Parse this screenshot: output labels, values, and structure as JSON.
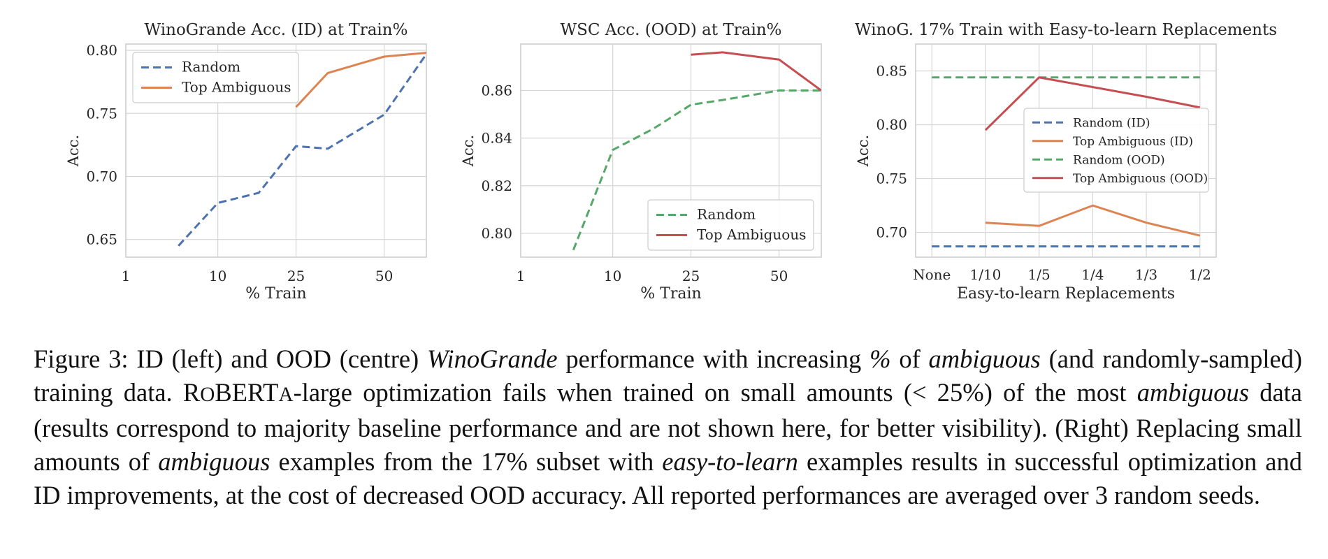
{
  "colors": {
    "blue": "#4c72b0",
    "orange": "#dd8452",
    "green": "#55a868",
    "red": "#c44e52",
    "grid": "#d6d6d6",
    "frame": "#cccccc"
  },
  "chart_data": [
    {
      "type": "line",
      "title": "WinoGrande Acc. (ID) at Train%",
      "xlabel": "% Train",
      "ylabel": "Acc.",
      "x_scale": "sqrt",
      "xlim": [
        1,
        65
      ],
      "ylim": [
        0.636,
        0.805
      ],
      "xticks": [
        1,
        10,
        25,
        50
      ],
      "yticks": [
        0.65,
        0.7,
        0.75,
        0.8
      ],
      "ytick_labels": [
        "0.65",
        "0.70",
        "0.75",
        "0.80"
      ],
      "grid": true,
      "legend_position": "upper-left",
      "series": [
        {
          "name": "Random",
          "color": "blue",
          "dash": true,
          "x": [
            5,
            10,
            17,
            25,
            33,
            50,
            65
          ],
          "y": [
            0.645,
            0.679,
            0.687,
            0.724,
            0.722,
            0.749,
            0.797
          ]
        },
        {
          "name": "Top Ambiguous",
          "color": "orange",
          "dash": false,
          "x": [
            25,
            33,
            50,
            65
          ],
          "y": [
            0.755,
            0.782,
            0.795,
            0.798
          ]
        }
      ]
    },
    {
      "type": "line",
      "title": "WSC Acc. (OOD) at Train%",
      "xlabel": "% Train",
      "ylabel": "Acc.",
      "x_scale": "sqrt",
      "xlim": [
        1,
        65
      ],
      "ylim": [
        0.79,
        0.8795
      ],
      "xticks": [
        1,
        10,
        25,
        50
      ],
      "yticks": [
        0.8,
        0.82,
        0.84,
        0.86
      ],
      "ytick_labels": [
        "0.80",
        "0.82",
        "0.84",
        "0.86"
      ],
      "grid": true,
      "legend_position": "lower-right",
      "series": [
        {
          "name": "Random",
          "color": "green",
          "dash": true,
          "x": [
            5,
            10,
            17,
            25,
            33,
            50,
            65
          ],
          "y": [
            0.793,
            0.835,
            0.844,
            0.854,
            0.856,
            0.86,
            0.86
          ]
        },
        {
          "name": "Top Ambiguous",
          "color": "red",
          "dash": false,
          "x": [
            25,
            33,
            50,
            65
          ],
          "y": [
            0.875,
            0.876,
            0.873,
            0.86
          ]
        }
      ]
    },
    {
      "type": "line",
      "title": "WinoG. 17% Train with Easy-to-learn Replacements",
      "xlabel": "Easy-to-learn Replacements",
      "ylabel": "Acc.",
      "categories": [
        "None",
        "1/10",
        "1/5",
        "1/4",
        "1/3",
        "1/2"
      ],
      "ylim": [
        0.677,
        0.875
      ],
      "yticks": [
        0.7,
        0.75,
        0.8,
        0.85
      ],
      "ytick_labels": [
        "0.70",
        "0.75",
        "0.80",
        "0.85"
      ],
      "grid": true,
      "legend_position": "center-right",
      "series": [
        {
          "name": "Random (ID)",
          "color": "blue",
          "dash": true,
          "values": [
            0.687,
            0.687,
            0.687,
            0.687,
            0.687,
            0.687
          ]
        },
        {
          "name": "Top Ambiguous (ID)",
          "color": "orange",
          "dash": false,
          "values": [
            null,
            0.709,
            0.706,
            0.725,
            0.709,
            0.697
          ]
        },
        {
          "name": "Random (OOD)",
          "color": "green",
          "dash": true,
          "values": [
            0.844,
            0.844,
            0.844,
            0.844,
            0.844,
            0.844
          ]
        },
        {
          "name": "Top Ambiguous (OOD)",
          "color": "red",
          "dash": false,
          "values": [
            null,
            0.795,
            0.844,
            0.835,
            0.826,
            0.816
          ]
        }
      ]
    }
  ],
  "caption": {
    "fig_label": "Figure 3:",
    "s1": "ID (left) and OOD (centre)",
    "winogrande": "WinoGrande",
    "s2": "performance with increasing",
    "pct": "%",
    "s3": "of",
    "ambiguous1": "ambiguous",
    "s4": "(and randomly-sampled) training data.",
    "roberta_r": "R",
    "roberta_o": "O",
    "roberta_bert": "BERT",
    "roberta_a": "A",
    "s5": "-large optimization fails when trained on small amounts (< 25%) of the most",
    "ambiguous2": "ambiguous",
    "s6": "data (results correspond to majority baseline performance and are not shown here, for better visibility). (Right) Replacing small amounts of",
    "ambiguous3": "ambiguous",
    "s7": "examples from the 17% subset with",
    "easy": "easy-to-learn",
    "s8": "examples results in successful optimization and ID improvements, at the cost of decreased OOD accuracy.  All reported performances are averaged over 3 random seeds."
  }
}
